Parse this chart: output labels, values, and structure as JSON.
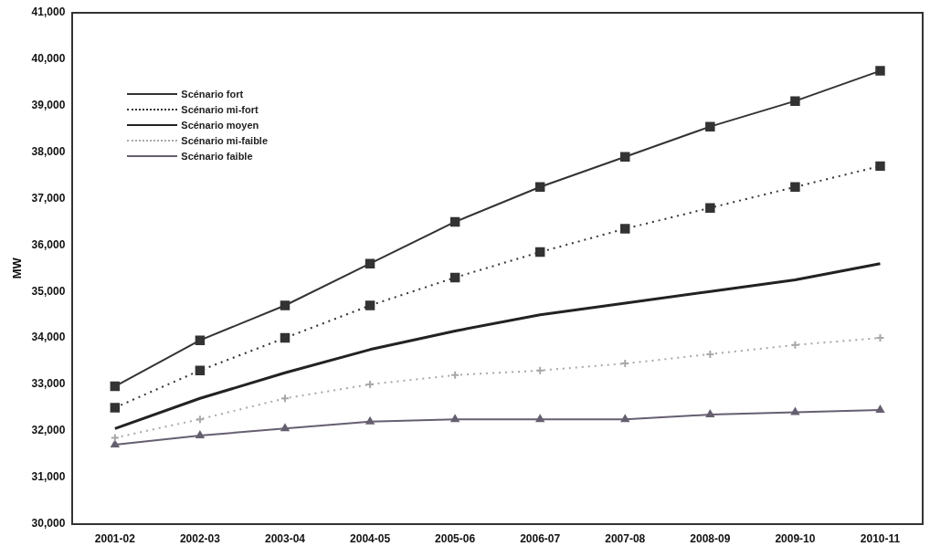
{
  "chart_data": {
    "type": "line",
    "ylabel": "MW",
    "categories": [
      "2001-02",
      "2002-03",
      "2003-04",
      "2004-05",
      "2005-06",
      "2006-07",
      "2007-08",
      "2008-09",
      "2009-10",
      "2010-11"
    ],
    "series": [
      {
        "name": "Scénario fort",
        "color": "#333333",
        "marker": "square",
        "line_style": "solid",
        "values": [
          32960,
          33950,
          34700,
          35600,
          36500,
          37250,
          37900,
          38550,
          39100,
          39750
        ]
      },
      {
        "name": "Scénario mi-fort",
        "color": "#333333",
        "marker": "square",
        "line_style": "dotted",
        "values": [
          32500,
          33300,
          34000,
          34700,
          35300,
          35850,
          36350,
          36800,
          37250,
          37700
        ]
      },
      {
        "name": "Scénario moyen",
        "color": "#222222",
        "marker": "none",
        "line_style": "solid",
        "values": [
          32050,
          32700,
          33250,
          33750,
          34150,
          34500,
          34750,
          35000,
          35250,
          35600
        ]
      },
      {
        "name": "Scénario mi-faible",
        "color": "#a8a8a8",
        "marker": "cross",
        "line_style": "dotted",
        "values": [
          31850,
          32250,
          32700,
          33000,
          33200,
          33300,
          33450,
          33650,
          33850,
          34000
        ]
      },
      {
        "name": "Scénario faible",
        "color": "#665f70",
        "marker": "triangle",
        "line_style": "solid",
        "values": [
          31700,
          31900,
          32050,
          32200,
          32250,
          32250,
          32250,
          32350,
          32400,
          32450
        ]
      }
    ],
    "ylim": [
      30000,
      41000
    ],
    "yticks": [
      {
        "value": 30000,
        "label": "30,000"
      },
      {
        "value": 31000,
        "label": "31,000"
      },
      {
        "value": 32000,
        "label": "32,000"
      },
      {
        "value": 33000,
        "label": "33,000"
      },
      {
        "value": 34000,
        "label": "34,000"
      },
      {
        "value": 35000,
        "label": "35,000"
      },
      {
        "value": 36000,
        "label": "36,000"
      },
      {
        "value": 37000,
        "label": "37,000"
      },
      {
        "value": 38000,
        "label": "38,000"
      },
      {
        "value": 39000,
        "label": "39,000"
      },
      {
        "value": 40000,
        "label": "40,000"
      },
      {
        "value": 41000,
        "label": "41,000"
      }
    ],
    "grid": false,
    "legend": "top left"
  }
}
